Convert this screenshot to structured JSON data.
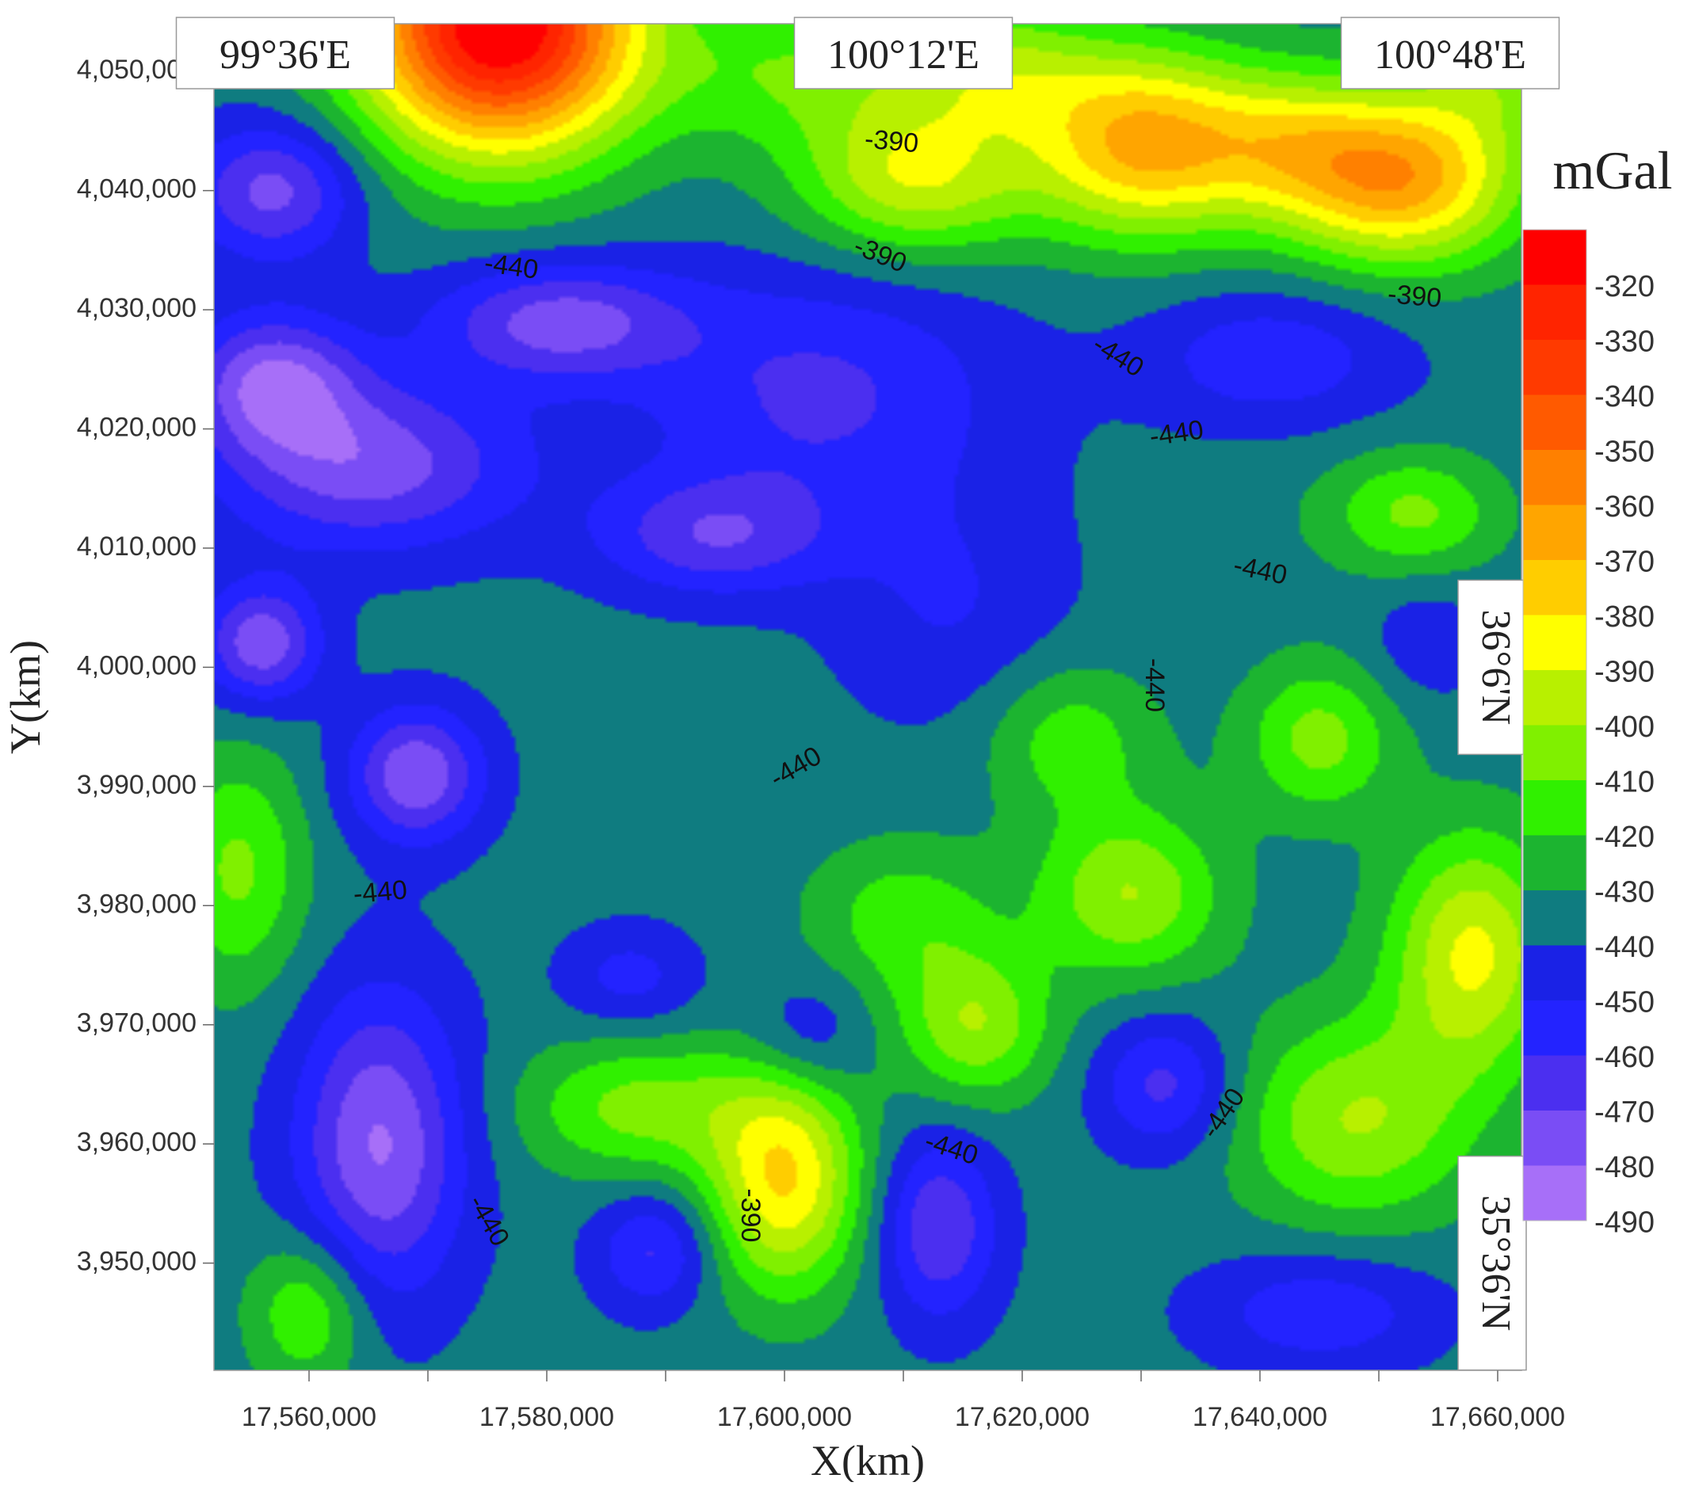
{
  "chart_data": {
    "type": "heatmap",
    "subtype": "filled-contour-map",
    "xlabel": "X(km)",
    "ylabel": "Y(km)",
    "xlim": [
      17552000,
      17662000
    ],
    "ylim": [
      3941000,
      4054000
    ],
    "x_ticks": [
      17560000,
      17580000,
      17600000,
      17620000,
      17640000,
      17660000
    ],
    "x_tick_labels": [
      "17,560,000",
      "17,580,000",
      "17,600,000",
      "17,620,000",
      "17,640,000",
      "17,660,000"
    ],
    "y_ticks": [
      3950000,
      3960000,
      3970000,
      3980000,
      3990000,
      4000000,
      4010000,
      4020000,
      4030000,
      4040000,
      4050000
    ],
    "y_tick_labels": [
      "3,950,000",
      "3,960,000",
      "3,970,000",
      "3,980,000",
      "3,990,000",
      "4,000,000",
      "4,010,000",
      "4,020,000",
      "4,030,000",
      "4,040,000",
      "4,050,000"
    ],
    "grid": false,
    "colorbar": {
      "title": "mGal",
      "placement": "right",
      "levels": [
        -320,
        -330,
        -340,
        -350,
        -360,
        -370,
        -380,
        -390,
        -400,
        -410,
        -420,
        -430,
        -440,
        -450,
        -460,
        -470,
        -480,
        -490
      ],
      "level_labels": [
        "-320",
        "-330",
        "-340",
        "-350",
        "-360",
        "-370",
        "-380",
        "-390",
        "-400",
        "-410",
        "-420",
        "-430",
        "-440",
        "-450",
        "-460",
        "-470",
        "-480",
        "-490"
      ],
      "colors": [
        "#ff0000",
        "#ff2400",
        "#ff3a00",
        "#ff5a00",
        "#ff8000",
        "#ffa500",
        "#ffcd00",
        "#ffff00",
        "#b8f000",
        "#80f000",
        "#30f000",
        "#1cb430",
        "#0f7c80",
        "#1a22e6",
        "#2323ff",
        "#4b2ff0",
        "#7a4df5",
        "#a76ff8"
      ]
    },
    "longitude_labels": [
      {
        "text": "99°36'E",
        "x": 17558000
      },
      {
        "text": "100°12'E",
        "x": 17610000
      },
      {
        "text": "100°48'E",
        "x": 17656000
      }
    ],
    "latitude_labels": [
      {
        "text": "36°6'N",
        "y": 4000000
      },
      {
        "text": "35°36'N",
        "y": 3950000
      }
    ],
    "contour_labels": [
      {
        "text": "-390",
        "x": 17609000,
        "y": 4044000,
        "angle": 5
      },
      {
        "text": "-390",
        "x": 17608000,
        "y": 4034500,
        "angle": 22
      },
      {
        "text": "-390",
        "x": 17653000,
        "y": 4031000,
        "angle": 5
      },
      {
        "text": "-440",
        "x": 17577000,
        "y": 4033500,
        "angle": 8
      },
      {
        "text": "-440",
        "x": 17628000,
        "y": 4026000,
        "angle": 32
      },
      {
        "text": "-440",
        "x": 17633000,
        "y": 4019500,
        "angle": -8
      },
      {
        "text": "-440",
        "x": 17640000,
        "y": 4008000,
        "angle": 12
      },
      {
        "text": "-440",
        "x": 17631000,
        "y": 3998500,
        "angle": 90
      },
      {
        "text": "-440",
        "x": 17601000,
        "y": 3991500,
        "angle": -30
      },
      {
        "text": "-440",
        "x": 17566000,
        "y": 3981000,
        "angle": -5
      },
      {
        "text": "-440",
        "x": 17614000,
        "y": 3959500,
        "angle": 18
      },
      {
        "text": "-440",
        "x": 17637000,
        "y": 3962500,
        "angle": -55
      },
      {
        "text": "-440",
        "x": 17575000,
        "y": 3953500,
        "angle": 60
      },
      {
        "text": "-390",
        "x": 17597000,
        "y": 3954000,
        "angle": 90
      }
    ],
    "gravity_field": {
      "units": "mGal",
      "baseline": -436,
      "anomalies": [
        {
          "x": 17576000,
          "y": 4054000,
          "amp": 130,
          "sx": 8000,
          "sy": 7500
        },
        {
          "x": 17602000,
          "y": 4050000,
          "amp": 25,
          "sx": 9000,
          "sy": 4500
        },
        {
          "x": 17630000,
          "y": 4044000,
          "amp": 65,
          "sx": 6500,
          "sy": 5500
        },
        {
          "x": 17652000,
          "y": 4041000,
          "amp": 70,
          "sx": 7000,
          "sy": 5000
        },
        {
          "x": 17642000,
          "y": 4044000,
          "amp": 35,
          "sx": 6000,
          "sy": 4500
        },
        {
          "x": 17611000,
          "y": 4041000,
          "amp": 45,
          "sx": 7000,
          "sy": 4500
        },
        {
          "x": 17618000,
          "y": 4050000,
          "amp": 30,
          "sx": 6000,
          "sy": 4000
        },
        {
          "x": 17660000,
          "y": 4050000,
          "amp": 25,
          "sx": 5000,
          "sy": 4000
        },
        {
          "x": 17565000,
          "y": 4017000,
          "amp": -40,
          "sx": 9000,
          "sy": 5000
        },
        {
          "x": 17557000,
          "y": 4024000,
          "amp": -42,
          "sx": 5000,
          "sy": 4000
        },
        {
          "x": 17557000,
          "y": 4040000,
          "amp": -38,
          "sx": 5000,
          "sy": 4000
        },
        {
          "x": 17581000,
          "y": 4029000,
          "amp": -38,
          "sx": 7500,
          "sy": 3500
        },
        {
          "x": 17594000,
          "y": 4011000,
          "amp": -30,
          "sx": 7000,
          "sy": 3500
        },
        {
          "x": 17603000,
          "y": 4023000,
          "amp": -26,
          "sx": 11000,
          "sy": 7500
        },
        {
          "x": 17556000,
          "y": 4002000,
          "amp": -42,
          "sx": 3500,
          "sy": 3500
        },
        {
          "x": 17569000,
          "y": 3991000,
          "amp": -43,
          "sx": 4000,
          "sy": 4000
        },
        {
          "x": 17641000,
          "y": 4026000,
          "amp": -22,
          "sx": 7500,
          "sy": 4000
        },
        {
          "x": 17614000,
          "y": 4005000,
          "amp": -14,
          "sx": 7000,
          "sy": 7000
        },
        {
          "x": 17643000,
          "y": 4012000,
          "amp": 2,
          "sx": 5000,
          "sy": 5000
        },
        {
          "x": 17653000,
          "y": 4013000,
          "amp": 28,
          "sx": 5000,
          "sy": 3500
        },
        {
          "x": 17645000,
          "y": 3994000,
          "amp": 30,
          "sx": 4500,
          "sy": 4500
        },
        {
          "x": 17624000,
          "y": 3994000,
          "amp": 22,
          "sx": 5000,
          "sy": 4500
        },
        {
          "x": 17629000,
          "y": 3981000,
          "amp": 36,
          "sx": 5500,
          "sy": 5000
        },
        {
          "x": 17658000,
          "y": 3976000,
          "amp": 48,
          "sx": 5000,
          "sy": 7000
        },
        {
          "x": 17648000,
          "y": 3962000,
          "amp": 36,
          "sx": 7000,
          "sy": 6000
        },
        {
          "x": 17600000,
          "y": 3957000,
          "amp": 56,
          "sx": 4500,
          "sy": 6500
        },
        {
          "x": 17588000,
          "y": 3963000,
          "amp": 30,
          "sx": 7000,
          "sy": 4000
        },
        {
          "x": 17610000,
          "y": 3979000,
          "amp": 22,
          "sx": 5500,
          "sy": 4500
        },
        {
          "x": 17616000,
          "y": 3970000,
          "amp": 35,
          "sx": 4500,
          "sy": 4500
        },
        {
          "x": 17554000,
          "y": 3983000,
          "amp": 28,
          "sx": 4000,
          "sy": 7000
        },
        {
          "x": 17560000,
          "y": 3946000,
          "amp": 28,
          "sx": 3500,
          "sy": 4500
        },
        {
          "x": 17566000,
          "y": 3960000,
          "amp": -45,
          "sx": 5000,
          "sy": 9000
        },
        {
          "x": 17589000,
          "y": 3951000,
          "amp": -26,
          "sx": 3500,
          "sy": 3500
        },
        {
          "x": 17613000,
          "y": 3953000,
          "amp": -34,
          "sx": 3500,
          "sy": 5500
        },
        {
          "x": 17632000,
          "y": 3965000,
          "amp": -28,
          "sx": 4000,
          "sy": 4000
        },
        {
          "x": 17587000,
          "y": 3974000,
          "amp": -18,
          "sx": 4000,
          "sy": 3000
        },
        {
          "x": 17602000,
          "y": 3969000,
          "amp": -16,
          "sx": 3500,
          "sy": 3500
        },
        {
          "x": 17645000,
          "y": 3946000,
          "amp": -22,
          "sx": 7000,
          "sy": 3500
        },
        {
          "x": 17654000,
          "y": 4002000,
          "amp": -12,
          "sx": 3500,
          "sy": 3500
        }
      ]
    }
  }
}
